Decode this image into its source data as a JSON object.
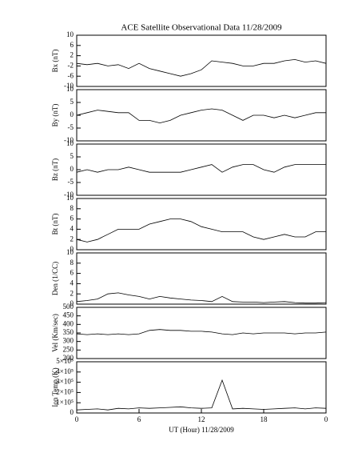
{
  "chart_data": [
    {
      "type": "line",
      "title": "ACE Satellite Observational Data   11/28/2009",
      "ylabel": "Bx (nT)",
      "x": [
        0,
        1,
        2,
        3,
        4,
        5,
        6,
        7,
        8,
        9,
        10,
        11,
        12,
        13,
        14,
        15,
        16,
        17,
        18,
        19,
        20,
        21,
        22,
        23,
        24
      ],
      "series": [
        {
          "color": "#000000",
          "values": [
            -1,
            -1.5,
            -1,
            -2,
            -1.5,
            -3,
            -1,
            -3,
            -4,
            -5,
            -6,
            -5,
            -3.5,
            0,
            -0.5,
            -1,
            -2,
            -2,
            -1,
            -1,
            0,
            0.5,
            -0.5,
            0,
            -1
          ]
        }
      ],
      "xlim": [
        0,
        24
      ],
      "ylim": [
        -10,
        10
      ],
      "yticks": [
        -10,
        -6,
        -2,
        2,
        6,
        10
      ]
    },
    {
      "type": "line",
      "ylabel": "By (nT)",
      "x": [
        0,
        1,
        2,
        3,
        4,
        5,
        6,
        7,
        8,
        9,
        10,
        11,
        12,
        13,
        14,
        15,
        16,
        17,
        18,
        19,
        20,
        21,
        22,
        23,
        24
      ],
      "series": [
        {
          "color": "#000000",
          "values": [
            0,
            1,
            2,
            1.5,
            1,
            1,
            -2,
            -2,
            -3,
            -2,
            0,
            1,
            2,
            2.5,
            2,
            0,
            -2,
            0,
            0,
            -1,
            0,
            -1,
            0,
            1,
            1
          ]
        }
      ],
      "xlim": [
        0,
        24
      ],
      "ylim": [
        -10,
        10
      ],
      "yticks": [
        -10,
        -5,
        0,
        5,
        10
      ]
    },
    {
      "type": "line",
      "ylabel": "Bz (nT)",
      "x": [
        0,
        1,
        2,
        3,
        4,
        5,
        6,
        7,
        8,
        9,
        10,
        11,
        12,
        13,
        14,
        15,
        16,
        17,
        18,
        19,
        20,
        21,
        22,
        23,
        24
      ],
      "series": [
        {
          "color": "#000000",
          "values": [
            -1,
            0,
            -1,
            0,
            0,
            1,
            0,
            -1,
            -1,
            -1,
            -1,
            0,
            1,
            2,
            -1,
            1,
            2,
            2,
            0,
            -1,
            1,
            2,
            2,
            2,
            2
          ]
        }
      ],
      "xlim": [
        0,
        24
      ],
      "ylim": [
        -10,
        10
      ],
      "yticks": [
        -10,
        -5,
        0,
        5,
        10
      ]
    },
    {
      "type": "line",
      "ylabel": "Bt (nT)",
      "x": [
        0,
        1,
        2,
        3,
        4,
        5,
        6,
        7,
        8,
        9,
        10,
        11,
        12,
        13,
        14,
        15,
        16,
        17,
        18,
        19,
        20,
        21,
        22,
        23,
        24
      ],
      "series": [
        {
          "color": "#000000",
          "values": [
            2,
            1.5,
            2,
            3,
            4,
            4,
            4,
            5,
            5.5,
            6,
            6,
            5.5,
            4.5,
            4,
            3.5,
            3.5,
            3.5,
            2.5,
            2,
            2.5,
            3,
            2.5,
            2.5,
            3.5,
            3.5
          ]
        }
      ],
      "xlim": [
        0,
        24
      ],
      "ylim": [
        0,
        10
      ],
      "yticks": [
        0,
        2,
        4,
        6,
        8,
        10
      ]
    },
    {
      "type": "line",
      "ylabel": "Den (1/CC)",
      "x": [
        0,
        1,
        2,
        3,
        4,
        5,
        6,
        7,
        8,
        9,
        10,
        11,
        12,
        13,
        14,
        15,
        16,
        17,
        18,
        19,
        20,
        21,
        22,
        23,
        24
      ],
      "series": [
        {
          "color": "#000000",
          "values": [
            0.5,
            0.7,
            1,
            2,
            2.2,
            1.8,
            1.5,
            1,
            1.5,
            1.2,
            1,
            0.8,
            0.7,
            0.5,
            1.5,
            0.5,
            0.4,
            0.4,
            0.3,
            0.4,
            0.5,
            0.3,
            0.2,
            0.2,
            0.3
          ]
        }
      ],
      "xlim": [
        0,
        24
      ],
      "ylim": [
        0,
        10
      ],
      "yticks": [
        0,
        2,
        4,
        6,
        8,
        10
      ]
    },
    {
      "type": "line",
      "ylabel": "Vel (Km/sec)",
      "x": [
        0,
        1,
        2,
        3,
        4,
        5,
        6,
        7,
        8,
        9,
        10,
        11,
        12,
        13,
        14,
        15,
        16,
        17,
        18,
        19,
        20,
        21,
        22,
        23,
        24
      ],
      "series": [
        {
          "color": "#000000",
          "values": [
            345,
            340,
            345,
            340,
            345,
            340,
            345,
            365,
            370,
            365,
            365,
            360,
            360,
            355,
            345,
            340,
            350,
            345,
            350,
            350,
            350,
            345,
            350,
            350,
            355
          ]
        }
      ],
      "xlim": [
        0,
        24
      ],
      "ylim": [
        200,
        500
      ],
      "yticks": [
        200,
        250,
        300,
        350,
        400,
        450,
        500
      ]
    },
    {
      "type": "line",
      "ylabel": "Ion Temp (K)",
      "xlabel": "UT (Hour)   11/28/2009",
      "x": [
        0,
        1,
        2,
        3,
        4,
        5,
        6,
        7,
        8,
        9,
        10,
        11,
        12,
        13,
        14,
        15,
        16,
        17,
        18,
        19,
        20,
        21,
        22,
        23,
        24
      ],
      "series": [
        {
          "color": "#000000",
          "values": [
            30000,
            35000,
            40000,
            30000,
            45000,
            40000,
            50000,
            45000,
            50000,
            55000,
            60000,
            50000,
            45000,
            50000,
            320000,
            40000,
            45000,
            40000,
            35000,
            40000,
            45000,
            50000,
            40000,
            50000,
            45000
          ]
        }
      ],
      "xlim": [
        0,
        24
      ],
      "ylim": [
        0,
        500000
      ],
      "yticks": [
        0,
        {
          "value": 100000,
          "label": "1×10⁵"
        },
        {
          "value": 200000,
          "label": "2×10⁵"
        },
        {
          "value": 300000,
          "label": "3×10⁵"
        },
        {
          "value": 400000,
          "label": "4×10⁵"
        },
        {
          "value": 500000,
          "label": "5×10⁵"
        }
      ],
      "xticks": [
        0,
        6,
        12,
        18,
        {
          "value": 24,
          "label": "0"
        }
      ]
    }
  ]
}
